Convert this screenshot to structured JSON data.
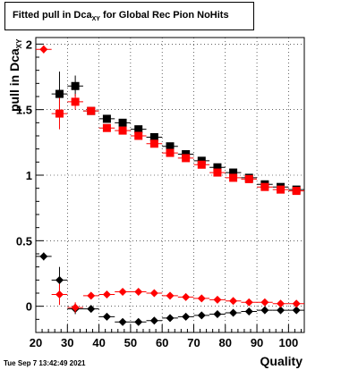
{
  "figure": {
    "title_prefix": "Fitted pull in Dca",
    "title_sub": "XY",
    "title_suffix": " for Global Rec Pion NoHits",
    "datestamp": "Tue Sep  7 13:42:49 2021"
  },
  "chart_data": {
    "type": "scatter",
    "xlabel": "Quality",
    "ylabel_main": "pull in Dca",
    "ylabel_sub": "XY",
    "xlim": [
      20,
      105
    ],
    "ylim": [
      -0.2,
      2.05
    ],
    "xticks": [
      20,
      30,
      40,
      50,
      60,
      70,
      80,
      90,
      100
    ],
    "yticks": [
      0,
      0.5,
      1,
      1.5,
      2
    ],
    "ytick_labels": [
      "0",
      "0.5",
      "1",
      "1.5",
      "2"
    ],
    "grid": true,
    "series": [
      {
        "marker": "square",
        "color": "#000000",
        "points": [
          {
            "x": 27.5,
            "y": 1.62,
            "err": 0.17
          },
          {
            "x": 32.5,
            "y": 1.68,
            "err": 0.08
          },
          {
            "x": 37.5,
            "y": 1.49,
            "err": 0.03
          },
          {
            "x": 42.5,
            "y": 1.43,
            "err": 0.02
          },
          {
            "x": 47.5,
            "y": 1.4,
            "err": 0.02
          },
          {
            "x": 52.5,
            "y": 1.35,
            "err": 0.02
          },
          {
            "x": 57.5,
            "y": 1.29,
            "err": 0.02
          },
          {
            "x": 62.5,
            "y": 1.22,
            "err": 0.015
          },
          {
            "x": 67.5,
            "y": 1.16,
            "err": 0.015
          },
          {
            "x": 72.5,
            "y": 1.11,
            "err": 0.015
          },
          {
            "x": 77.5,
            "y": 1.06,
            "err": 0.01
          },
          {
            "x": 82.5,
            "y": 1.02,
            "err": 0.01
          },
          {
            "x": 87.5,
            "y": 0.98,
            "err": 0.01
          },
          {
            "x": 92.5,
            "y": 0.93,
            "err": 0.01
          },
          {
            "x": 97.5,
            "y": 0.91,
            "err": 0.01
          },
          {
            "x": 102.5,
            "y": 0.89,
            "err": 0.01
          }
        ]
      },
      {
        "marker": "square",
        "color": "#ff0000",
        "points": [
          {
            "x": 27.5,
            "y": 1.47,
            "err": 0.12
          },
          {
            "x": 32.5,
            "y": 1.56,
            "err": 0.06
          },
          {
            "x": 37.5,
            "y": 1.49,
            "err": 0.03
          },
          {
            "x": 42.5,
            "y": 1.36,
            "err": 0.02
          },
          {
            "x": 47.5,
            "y": 1.34,
            "err": 0.02
          },
          {
            "x": 52.5,
            "y": 1.3,
            "err": 0.02
          },
          {
            "x": 57.5,
            "y": 1.24,
            "err": 0.02
          },
          {
            "x": 62.5,
            "y": 1.17,
            "err": 0.015
          },
          {
            "x": 67.5,
            "y": 1.13,
            "err": 0.015
          },
          {
            "x": 72.5,
            "y": 1.08,
            "err": 0.015
          },
          {
            "x": 77.5,
            "y": 1.02,
            "err": 0.01
          },
          {
            "x": 82.5,
            "y": 0.98,
            "err": 0.01
          },
          {
            "x": 87.5,
            "y": 0.97,
            "err": 0.01
          },
          {
            "x": 92.5,
            "y": 0.91,
            "err": 0.01
          },
          {
            "x": 97.5,
            "y": 0.89,
            "err": 0.01
          },
          {
            "x": 102.5,
            "y": 0.88,
            "err": 0.01
          }
        ]
      },
      {
        "marker": "diamond",
        "color": "#000000",
        "points": [
          {
            "x": 22.5,
            "y": 0.38,
            "err": 0.03
          },
          {
            "x": 27.5,
            "y": 0.2,
            "err": 0.1
          },
          {
            "x": 32.5,
            "y": -0.02,
            "err": 0.04
          },
          {
            "x": 37.5,
            "y": -0.02,
            "err": 0.02
          },
          {
            "x": 42.5,
            "y": -0.08,
            "err": 0.01
          },
          {
            "x": 47.5,
            "y": -0.12,
            "err": 0.01
          },
          {
            "x": 52.5,
            "y": -0.12,
            "err": 0.01
          },
          {
            "x": 57.5,
            "y": -0.11,
            "err": 0.01
          },
          {
            "x": 62.5,
            "y": -0.09,
            "err": 0.01
          },
          {
            "x": 67.5,
            "y": -0.08,
            "err": 0.01
          },
          {
            "x": 72.5,
            "y": -0.07,
            "err": 0.01
          },
          {
            "x": 77.5,
            "y": -0.06,
            "err": 0.01
          },
          {
            "x": 82.5,
            "y": -0.05,
            "err": 0.01
          },
          {
            "x": 87.5,
            "y": -0.04,
            "err": 0.01
          },
          {
            "x": 92.5,
            "y": -0.03,
            "err": 0.01
          },
          {
            "x": 97.5,
            "y": -0.03,
            "err": 0.01
          },
          {
            "x": 102.5,
            "y": -0.03,
            "err": 0.01
          }
        ]
      },
      {
        "marker": "diamond",
        "color": "#ff0000",
        "points": [
          {
            "x": 22.5,
            "y": 1.96,
            "err": 0.03
          },
          {
            "x": 27.5,
            "y": 0.09,
            "err": 0.08
          },
          {
            "x": 32.5,
            "y": -0.01,
            "err": 0.04
          },
          {
            "x": 37.5,
            "y": 0.08,
            "err": 0.02
          },
          {
            "x": 42.5,
            "y": 0.09,
            "err": 0.01
          },
          {
            "x": 47.5,
            "y": 0.11,
            "err": 0.01
          },
          {
            "x": 52.5,
            "y": 0.11,
            "err": 0.01
          },
          {
            "x": 57.5,
            "y": 0.1,
            "err": 0.01
          },
          {
            "x": 62.5,
            "y": 0.08,
            "err": 0.01
          },
          {
            "x": 67.5,
            "y": 0.07,
            "err": 0.01
          },
          {
            "x": 72.5,
            "y": 0.06,
            "err": 0.01
          },
          {
            "x": 77.5,
            "y": 0.05,
            "err": 0.01
          },
          {
            "x": 82.5,
            "y": 0.04,
            "err": 0.01
          },
          {
            "x": 87.5,
            "y": 0.03,
            "err": 0.01
          },
          {
            "x": 92.5,
            "y": 0.03,
            "err": 0.01
          },
          {
            "x": 97.5,
            "y": 0.02,
            "err": 0.01
          },
          {
            "x": 102.5,
            "y": 0.02,
            "err": 0.01
          }
        ]
      }
    ]
  }
}
